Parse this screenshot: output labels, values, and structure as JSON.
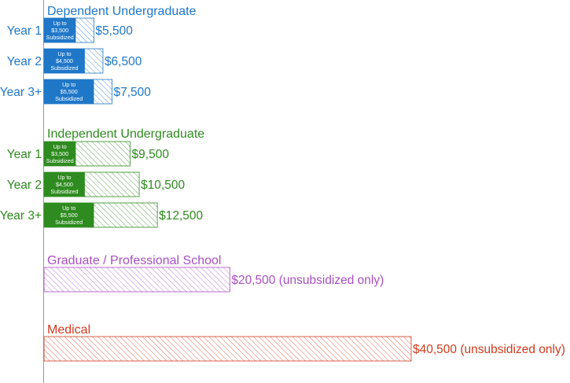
{
  "chart_data": {
    "type": "bar",
    "orientation": "horizontal",
    "stacked": true,
    "groups": [
      {
        "name": "Dependent Undergraduate",
        "color": "#1f77c8",
        "bars": [
          {
            "label": "Year 1",
            "subsidized": 3500,
            "total": 5500,
            "sub_lines": [
              "Up to",
              "$3,500",
              "Subsidized"
            ],
            "total_label": "$5,500"
          },
          {
            "label": "Year 2",
            "subsidized": 4500,
            "total": 6500,
            "sub_lines": [
              "Up to",
              "$4,500",
              "Subsidized"
            ],
            "total_label": "$6,500"
          },
          {
            "label": "Year 3+",
            "subsidized": 5500,
            "total": 7500,
            "sub_lines": [
              "Up to",
              "$5,500",
              "Subsidized"
            ],
            "total_label": "$7,500"
          }
        ]
      },
      {
        "name": "Independent Undergraduate",
        "color": "#2e8b1f",
        "bars": [
          {
            "label": "Year 1",
            "subsidized": 3500,
            "total": 9500,
            "sub_lines": [
              "Up to",
              "$3,500",
              "Subsidized"
            ],
            "total_label": "$9,500"
          },
          {
            "label": "Year 2",
            "subsidized": 4500,
            "total": 10500,
            "sub_lines": [
              "Up to",
              "$4,500",
              "Subsidized"
            ],
            "total_label": "$10,500"
          },
          {
            "label": "Year 3+",
            "subsidized": 5500,
            "total": 12500,
            "sub_lines": [
              "Up to",
              "$5,500",
              "Subsidized"
            ],
            "total_label": "$12,500"
          }
        ]
      },
      {
        "name": "Graduate / Professional School",
        "color": "#a94fc1",
        "bars": [
          {
            "label": "",
            "subsidized": 0,
            "total": 20500,
            "sub_lines": [],
            "total_label": "$20,500 (unsubsidized only)"
          }
        ]
      },
      {
        "name": "Medical",
        "color": "#cf3b1f",
        "bars": [
          {
            "label": "",
            "subsidized": 0,
            "total": 40500,
            "sub_lines": [],
            "total_label": "$40,500 (unsubsidized only)"
          }
        ]
      }
    ],
    "xlim": [
      0,
      40500
    ],
    "grid": false,
    "legend": "none"
  }
}
